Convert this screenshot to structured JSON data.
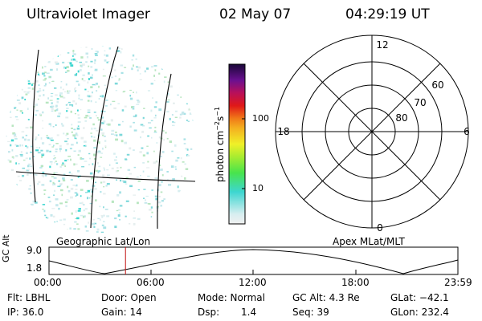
{
  "header": {
    "title": "Ultraviolet Imager",
    "date": "02 May 07",
    "time": "04:29:19 UT"
  },
  "colorbar": {
    "unit_label": "photon cm",
    "unit_exp1": "−2",
    "unit_mid": "s",
    "unit_exp2": "−1",
    "tick_labels": [
      "100",
      "10"
    ],
    "stops": [
      "#f0f0f0",
      "#d8eef0",
      "#3dd6d0",
      "#48e44c",
      "#a8ec30",
      "#f0f028",
      "#f4b020",
      "#f07a18",
      "#e01818",
      "#b8105a",
      "#6a1090",
      "#1a0838"
    ]
  },
  "polar": {
    "mlt_labels": [
      "12",
      "6",
      "0",
      "18"
    ],
    "lat_labels": [
      "60",
      "70",
      "80"
    ]
  },
  "panel_labels": {
    "left": "Geographic Lat/Lon",
    "right": "Apex MLat/MLT"
  },
  "altitude_plot": {
    "axis_label": "GC Alt",
    "y_ticks": [
      "9.0",
      "1.8"
    ],
    "x_ticks": [
      "00:00",
      "06:00",
      "12:00",
      "18:00",
      "23:59"
    ],
    "marker_hours": 4.49
  },
  "footer": {
    "row1": {
      "flt": "Flt: LBHL",
      "door": "Door: Open",
      "mode": "Mode: Normal",
      "gcalt": "GC Alt: 4.3 Re",
      "glat": "GLat: −42.1"
    },
    "row2": {
      "ip": "IP: 36.0",
      "gain": "Gain: 14",
      "dsp_label": "Dsp:",
      "dsp_value": "1.4",
      "seq": "Seq: 39",
      "glon": "GLon: 232.4"
    }
  }
}
